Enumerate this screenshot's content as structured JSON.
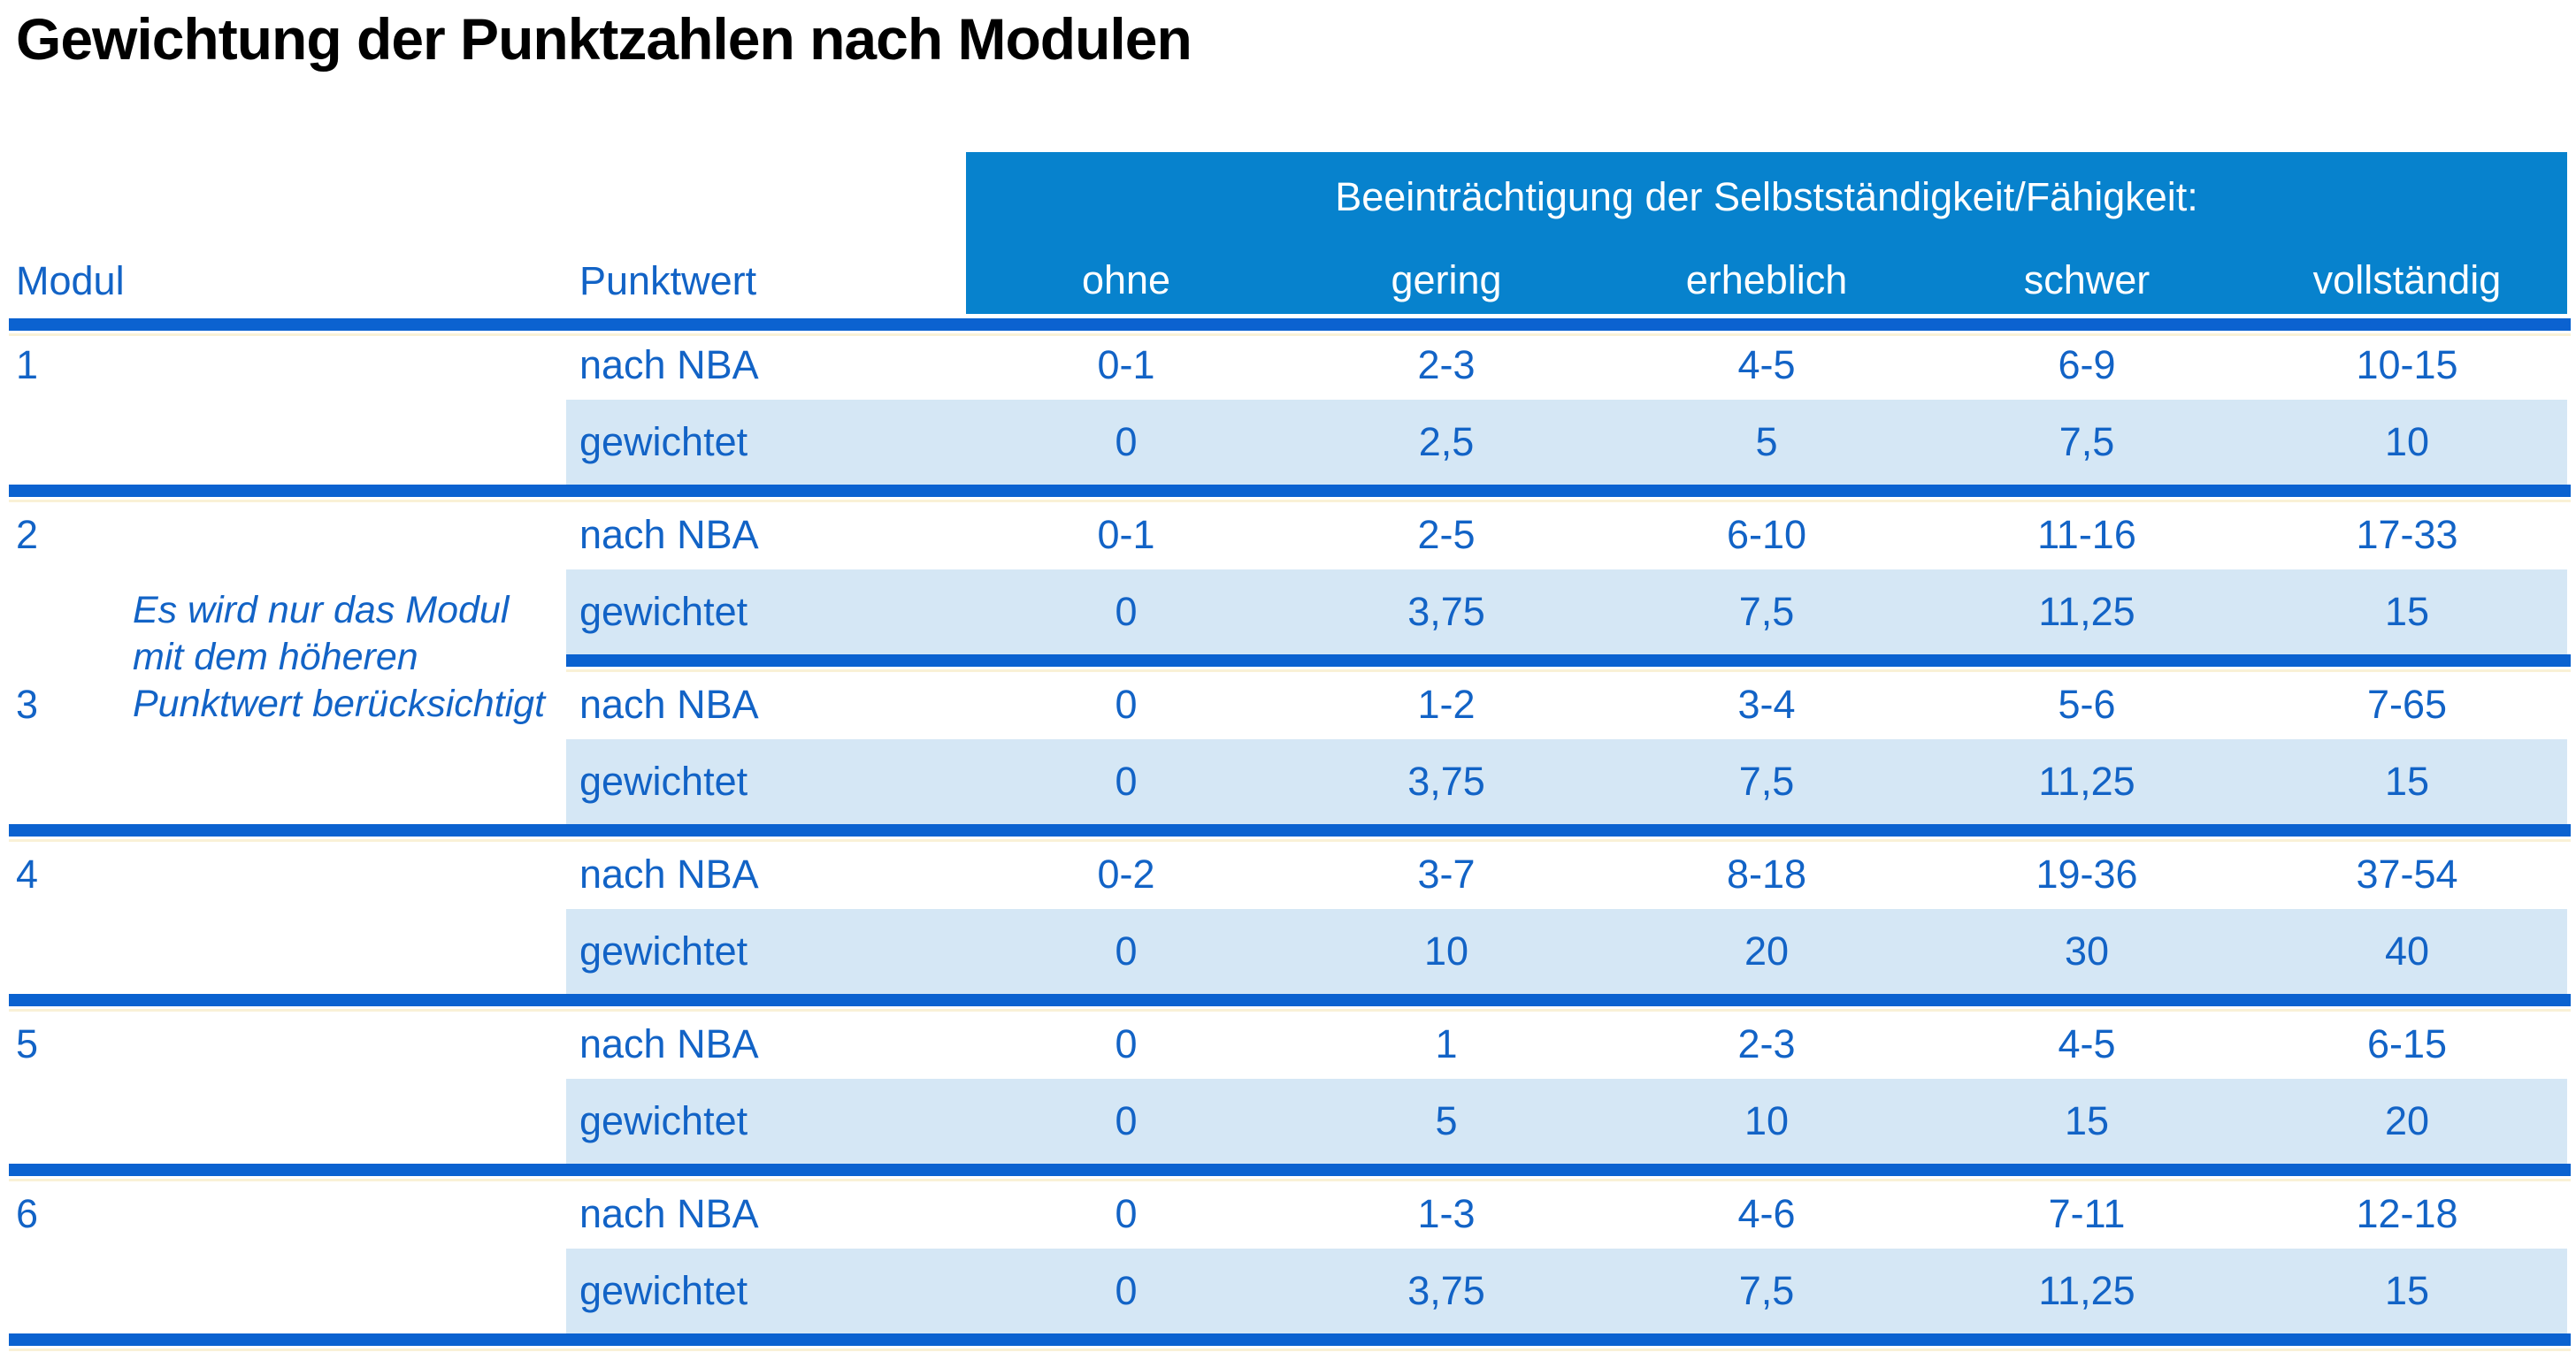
{
  "title": "Gewichtung der Punktzahlen nach Modulen",
  "header": {
    "modul_label": "Modul",
    "punktwert_label": "Punktwert",
    "banner_title": "Beeinträchtigung der Selbstständigkeit/Fähigkeit:",
    "severity_labels": [
      "ohne",
      "gering",
      "erheblich",
      "schwer",
      "vollständig"
    ]
  },
  "row_labels": {
    "nba": "nach NBA",
    "weighted": "gewichtet"
  },
  "note": {
    "lines": [
      "Es wird nur das Modul",
      "mit dem höheren",
      "Punktwert berücksichtigt"
    ]
  },
  "modules": [
    {
      "id": "1",
      "nba": [
        "0-1",
        "2-3",
        "4-5",
        "6-9",
        "10-15"
      ],
      "weighted": [
        "0",
        "2,5",
        "5",
        "7,5",
        "10"
      ]
    },
    {
      "id": "2",
      "nba": [
        "0-1",
        "2-5",
        "6-10",
        "11-16",
        "17-33"
      ],
      "weighted": [
        "0",
        "3,75",
        "7,5",
        "11,25",
        "15"
      ]
    },
    {
      "id": "3",
      "nba": [
        "0",
        "1-2",
        "3-4",
        "5-6",
        "7-65"
      ],
      "weighted": [
        "0",
        "3,75",
        "7,5",
        "11,25",
        "15"
      ]
    },
    {
      "id": "4",
      "nba": [
        "0-2",
        "3-7",
        "8-18",
        "19-36",
        "37-54"
      ],
      "weighted": [
        "0",
        "10",
        "20",
        "30",
        "40"
      ]
    },
    {
      "id": "5",
      "nba": [
        "0",
        "1",
        "2-3",
        "4-5",
        "6-15"
      ],
      "weighted": [
        "0",
        "5",
        "10",
        "15",
        "20"
      ]
    },
    {
      "id": "6",
      "nba": [
        "0",
        "1-3",
        "4-6",
        "7-11",
        "12-18"
      ],
      "weighted": [
        "0",
        "3,75",
        "7,5",
        "11,25",
        "15"
      ]
    }
  ],
  "colors": {
    "banner_blue": "#0782cd",
    "separator_blue": "#0b62d0",
    "row_light_blue": "#d5e7f5",
    "text_blue": "#1263c6",
    "banner_text": "#ffffff",
    "title_text": "#000000"
  }
}
